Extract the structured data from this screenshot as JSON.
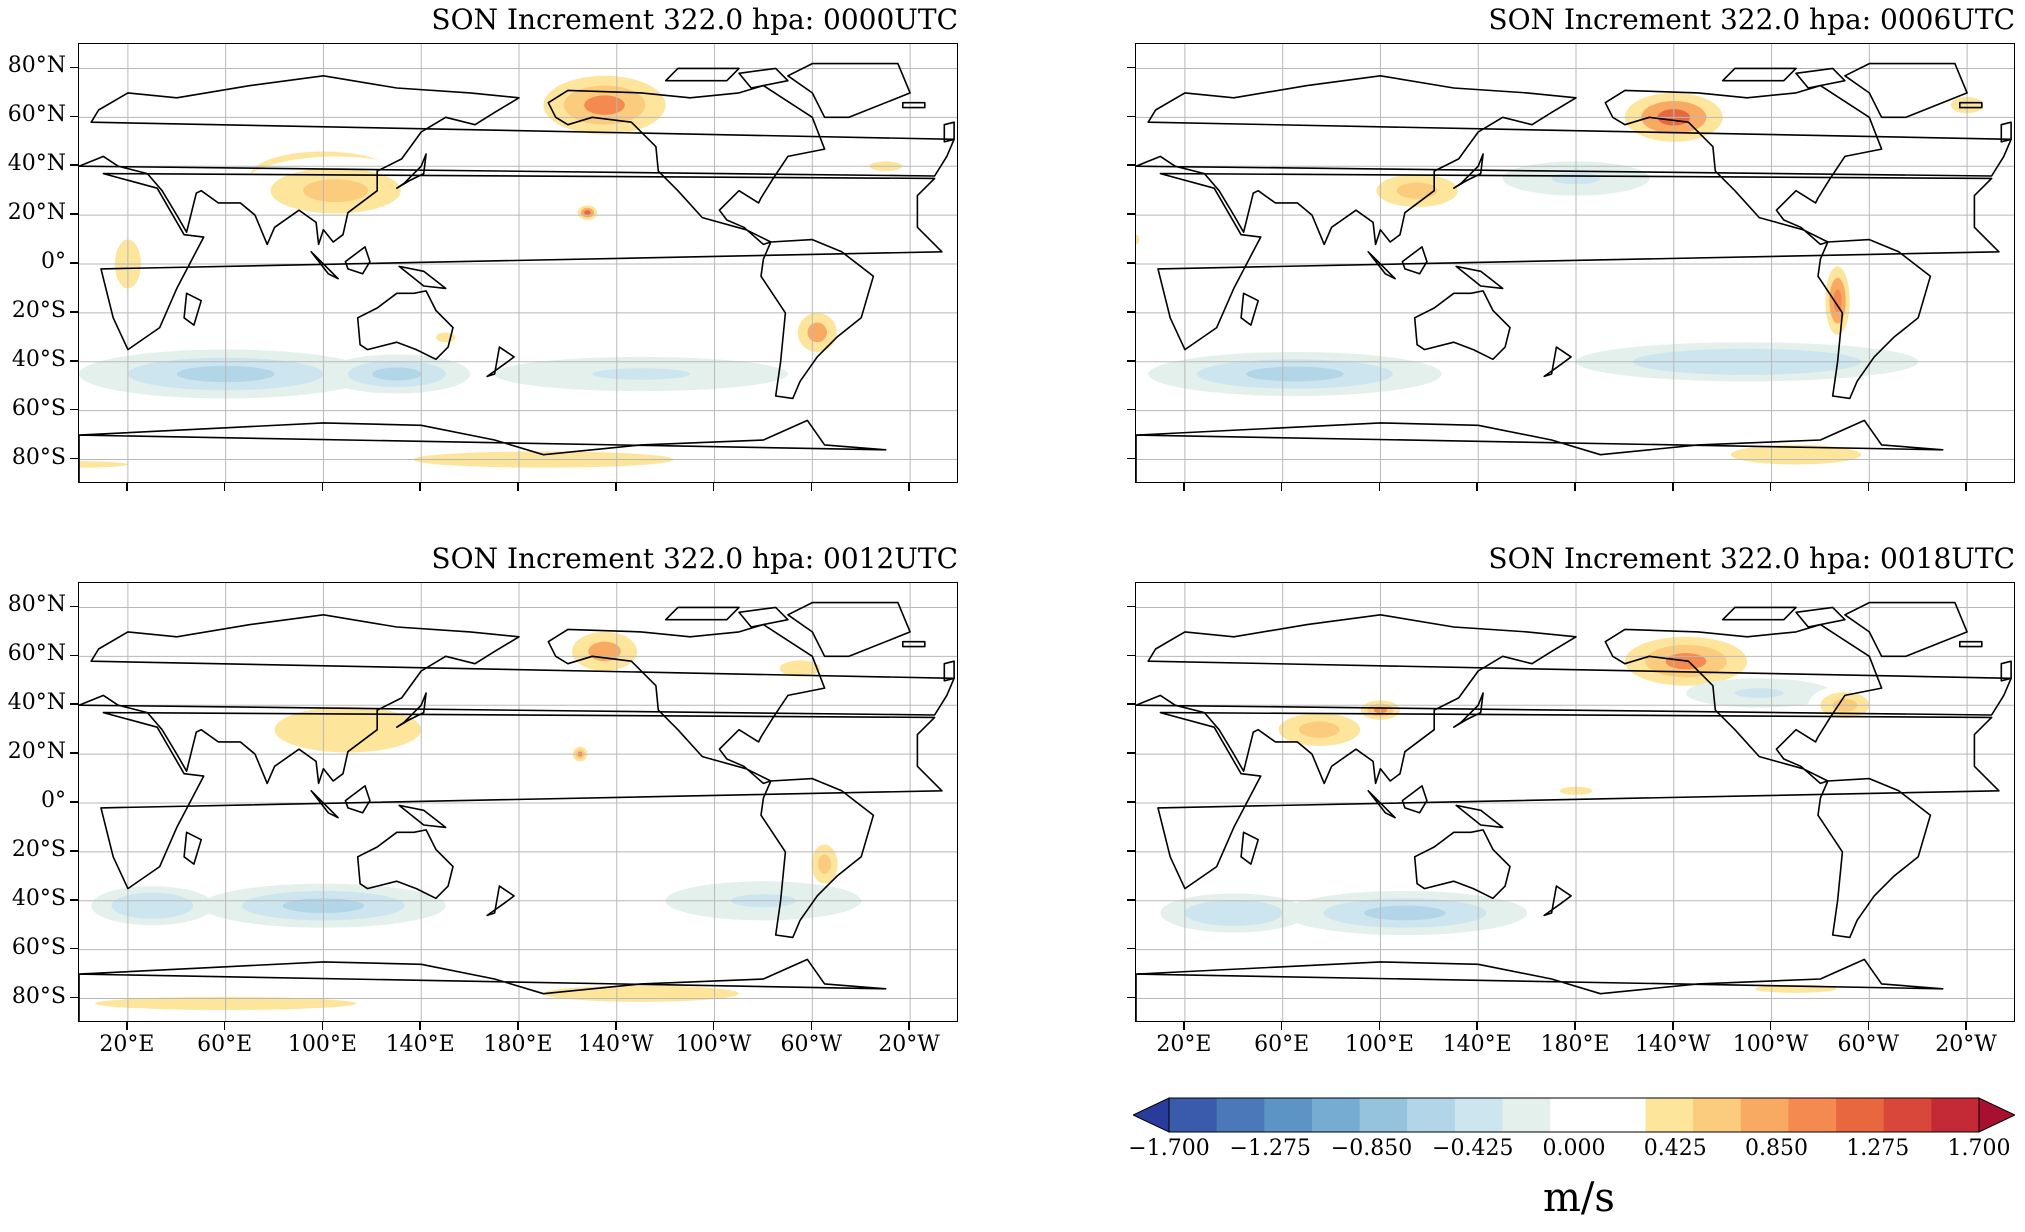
{
  "panels": [
    {
      "title": "SON Increment 322.0 hpa: 0000UTC",
      "show_xlabels": false,
      "show_ylabels": true
    },
    {
      "title": "SON Increment 322.0 hpa: 0006UTC",
      "show_xlabels": false,
      "show_ylabels": false
    },
    {
      "title": "SON Increment 322.0 hpa: 0012UTC",
      "show_xlabels": true,
      "show_ylabels": true
    },
    {
      "title": "SON Increment 322.0 hpa: 0018UTC",
      "show_xlabels": true,
      "show_ylabels": false
    }
  ],
  "axes": {
    "lat_labels": [
      "80°N",
      "60°N",
      "40°N",
      "20°N",
      "0°",
      "20°S",
      "40°S",
      "60°S",
      "80°S"
    ],
    "lat_values": [
      80,
      60,
      40,
      20,
      0,
      -20,
      -40,
      -60,
      -80
    ],
    "lon_labels": [
      "20°E",
      "60°E",
      "100°E",
      "140°E",
      "180°E",
      "140°W",
      "100°W",
      "60°W",
      "20°W"
    ],
    "lon_values": [
      20,
      60,
      100,
      140,
      180,
      220,
      260,
      300,
      340
    ],
    "lon_range": [
      0,
      360
    ],
    "lat_range": [
      -90,
      90
    ],
    "central_longitude": 180,
    "grid": true
  },
  "colorbar": {
    "tick_labels": [
      "−1.700",
      "−1.275",
      "−0.850",
      "−0.425",
      "0.000",
      "0.425",
      "0.850",
      "1.275",
      "1.700"
    ],
    "tick_values": [
      -1.7,
      -1.275,
      -0.85,
      -0.425,
      0,
      0.425,
      0.85,
      1.275,
      1.7
    ],
    "unit": "m/s",
    "extend": "both",
    "colors": [
      "#2a3c9a",
      "#3a5aac",
      "#4a78b8",
      "#5d94c6",
      "#76acd2",
      "#95c3de",
      "#b2d6e8",
      "#cde5ef",
      "#e3f0ec",
      "#ffffff",
      "#ffffff",
      "#fde59b",
      "#fccc7e",
      "#f9aa62",
      "#f48a4f",
      "#e9673f",
      "#d9463a",
      "#c42a35",
      "#a8102f"
    ]
  },
  "features": {
    "coastline_color": "#000000",
    "positive_color": "#f7b25c",
    "negative_color": "#7fb2d6"
  }
}
